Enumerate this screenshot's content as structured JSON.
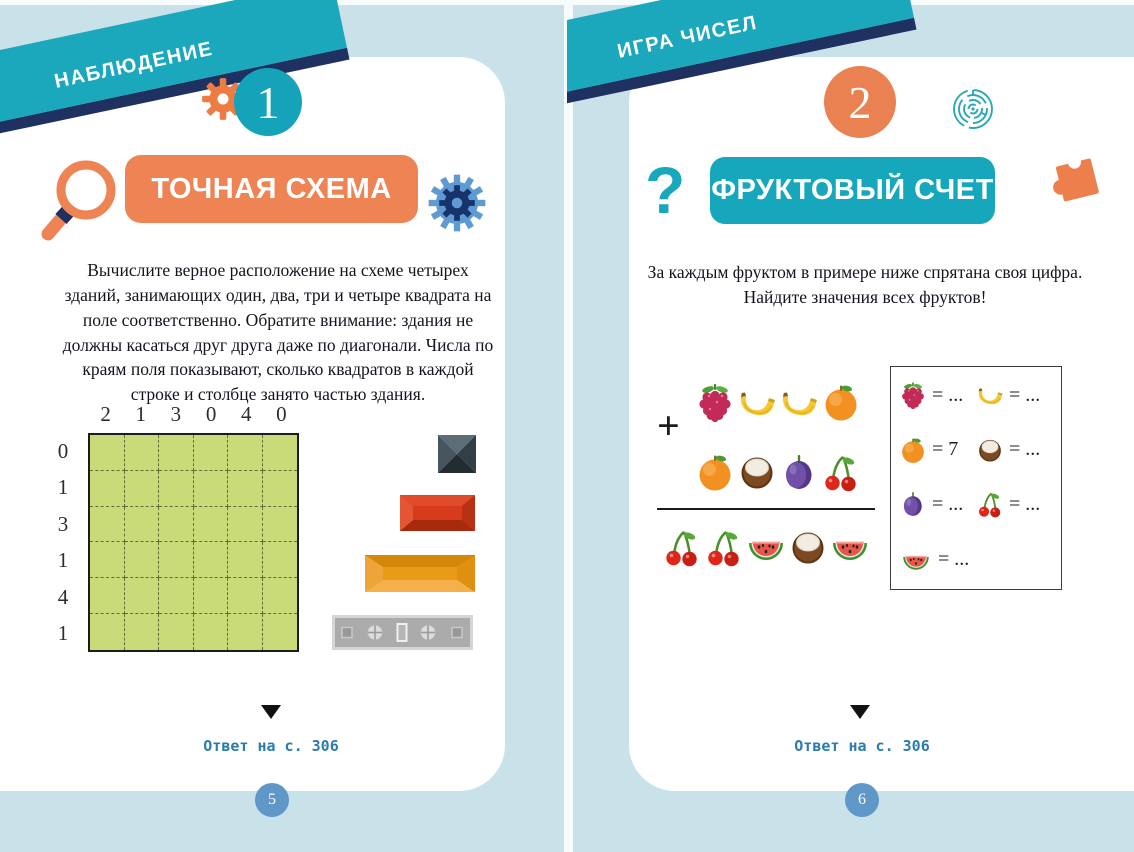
{
  "left_page": {
    "ribbon": "НАБЛЮДЕНИЕ",
    "number": "1",
    "title": "ТОЧНАЯ СХЕМА",
    "intro": "Вычислите верное расположение на схеме четырех зданий, занимающих один, два, три и четыре квадрата на поле соответственно. Обратите внимание: здания не должны касаться друг друга даже по диагонали. Числа по краям поля показывают, сколько квадратов в каждой строке и столбце занято частью здания.",
    "icons": [
      "gear-icon",
      "magnifier-icon",
      "double-gear-icon"
    ],
    "grid": {
      "rows": 6,
      "cols": 6,
      "col_labels": [
        "2",
        "1",
        "3",
        "0",
        "4",
        "0"
      ],
      "row_labels": [
        "0",
        "1",
        "3",
        "1",
        "4",
        "1"
      ]
    },
    "buildings": [
      "1-square-dark-roof",
      "2-square-red-roof",
      "3-square-orange-roof",
      "4-square-gray-roof"
    ],
    "answer_note": "Ответ на с. 306",
    "page_number": "5"
  },
  "right_page": {
    "ribbon": "ИГРА ЧИСЕЛ",
    "number": "2",
    "title": "ФРУКТОВЫЙ СЧЕТ",
    "intro": "За каждым фруктом в примере ниже спрятана своя цифра. Найдите значения всех фруктов!",
    "icons": [
      "maze-icon",
      "question-mark",
      "puzzle-piece-icon"
    ],
    "equation": {
      "addend1": [
        "raspberry",
        "banana",
        "banana",
        "orange"
      ],
      "plus": "+",
      "addend2": [
        "orange",
        "coconut",
        "plum",
        "cherry"
      ],
      "sum": [
        "cherry",
        "cherry",
        "watermelon",
        "coconut",
        "watermelon"
      ]
    },
    "answers": [
      {
        "fruit": "raspberry",
        "value": "= ..."
      },
      {
        "fruit": "banana",
        "value": "= ..."
      },
      {
        "fruit": "orange",
        "value": "= 7"
      },
      {
        "fruit": "coconut",
        "value": "= ..."
      },
      {
        "fruit": "plum",
        "value": "= ..."
      },
      {
        "fruit": "cherry",
        "value": "= ..."
      },
      {
        "fruit": "watermelon",
        "value": "= ..."
      }
    ],
    "answer_note": "Ответ на с. 306",
    "page_number": "6"
  },
  "colors": {
    "background": "#c9e2ea",
    "ribbon_teal": "#1ba7bc",
    "ribbon_shadow": "#1e3160",
    "accent_orange": "#ee8354",
    "accent_teal": "#17a7bc",
    "grid_green": "#c9da79",
    "page_circle_blue": "#5f97c9",
    "note_blue": "#2b7cab"
  }
}
